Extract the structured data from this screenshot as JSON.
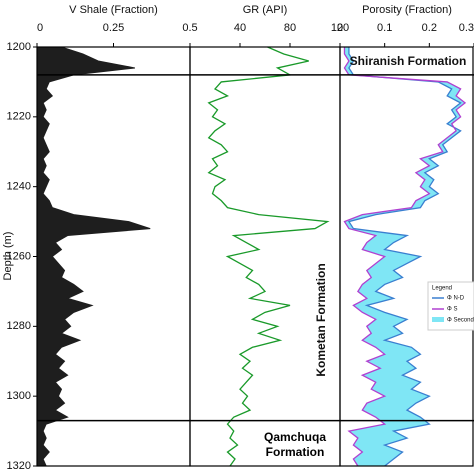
{
  "chart_data": {
    "type": "well-log",
    "y_label": "Depth (m)",
    "ylim": [
      1200,
      1320
    ],
    "yticks": [
      1200,
      1220,
      1240,
      1260,
      1280,
      1300,
      1320
    ],
    "depth": [
      1200,
      1202,
      1204,
      1206,
      1208,
      1210,
      1212,
      1214,
      1216,
      1218,
      1220,
      1222,
      1224,
      1226,
      1228,
      1230,
      1232,
      1234,
      1236,
      1238,
      1240,
      1242,
      1244,
      1246,
      1248,
      1250,
      1252,
      1254,
      1256,
      1258,
      1260,
      1262,
      1264,
      1266,
      1268,
      1270,
      1272,
      1274,
      1276,
      1278,
      1280,
      1282,
      1284,
      1286,
      1288,
      1290,
      1292,
      1294,
      1296,
      1298,
      1300,
      1302,
      1304,
      1306,
      1308,
      1310,
      1312,
      1314,
      1316,
      1318,
      1320
    ],
    "tracks": [
      {
        "title": "V Shale (Fraction)",
        "xlim": [
          0,
          0.5
        ],
        "xticks": [
          0,
          0.25,
          0.5
        ],
        "fill": true,
        "series": [
          {
            "color": "#1e1e1e",
            "values": [
              0.08,
              0.15,
              0.2,
              0.32,
              0.12,
              0.04,
              0.03,
              0.05,
              0.02,
              0.03,
              0.02,
              0.04,
              0.03,
              0.02,
              0.03,
              0.04,
              0.02,
              0.03,
              0.02,
              0.04,
              0.03,
              0.02,
              0.04,
              0.05,
              0.12,
              0.3,
              0.37,
              0.1,
              0.06,
              0.08,
              0.05,
              0.07,
              0.09,
              0.08,
              0.12,
              0.15,
              0.1,
              0.18,
              0.12,
              0.09,
              0.11,
              0.08,
              0.14,
              0.08,
              0.06,
              0.09,
              0.07,
              0.1,
              0.06,
              0.08,
              0.07,
              0.09,
              0.06,
              0.1,
              0.03,
              0.02,
              0.03,
              0.02,
              0.04,
              0.02,
              0.03
            ]
          }
        ]
      },
      {
        "title": "GR (API)",
        "xlim": [
          0,
          120
        ],
        "xticks": [
          40,
          80,
          120
        ],
        "fill": false,
        "series": [
          {
            "color": "#1a9a2a",
            "values": [
              62,
              75,
              95,
              70,
              80,
              25,
              20,
              30,
              15,
              22,
              18,
              28,
              20,
              15,
              25,
              30,
              18,
              22,
              15,
              28,
              20,
              18,
              25,
              30,
              55,
              110,
              100,
              35,
              45,
              55,
              30,
              40,
              50,
              45,
              55,
              60,
              48,
              80,
              60,
              50,
              70,
              55,
              72,
              50,
              40,
              48,
              42,
              50,
              45,
              40,
              46,
              42,
              48,
              35,
              30,
              35,
              32,
              38,
              30,
              36,
              32
            ]
          }
        ]
      },
      {
        "title": "Porosity (Fraction)",
        "xlim": [
          0,
          0.3
        ],
        "xticks": [
          0,
          0.1,
          0.2,
          0.3
        ],
        "fill": false,
        "series": [
          {
            "name": "Φ N-D",
            "color": "#3a7fd0",
            "values": [
              0.02,
              0.02,
              0.03,
              0.02,
              0.03,
              0.22,
              0.25,
              0.24,
              0.27,
              0.25,
              0.26,
              0.24,
              0.27,
              0.25,
              0.23,
              0.24,
              0.2,
              0.22,
              0.19,
              0.21,
              0.2,
              0.22,
              0.19,
              0.18,
              0.08,
              0.02,
              0.03,
              0.15,
              0.12,
              0.1,
              0.18,
              0.15,
              0.12,
              0.14,
              0.1,
              0.08,
              0.12,
              0.06,
              0.1,
              0.15,
              0.12,
              0.14,
              0.1,
              0.16,
              0.18,
              0.15,
              0.17,
              0.14,
              0.18,
              0.16,
              0.2,
              0.17,
              0.15,
              0.18,
              0.2,
              0.12,
              0.15,
              0.1,
              0.14,
              0.12,
              0.1
            ]
          },
          {
            "name": "Φ S",
            "color": "#b040d0",
            "values": [
              0.01,
              0.01,
              0.02,
              0.01,
              0.02,
              0.24,
              0.27,
              0.26,
              0.28,
              0.26,
              0.27,
              0.25,
              0.26,
              0.24,
              0.22,
              0.23,
              0.18,
              0.2,
              0.17,
              0.19,
              0.18,
              0.2,
              0.17,
              0.16,
              0.05,
              0.01,
              0.02,
              0.08,
              0.06,
              0.05,
              0.1,
              0.08,
              0.06,
              0.07,
              0.05,
              0.04,
              0.06,
              0.03,
              0.05,
              0.08,
              0.06,
              0.07,
              0.05,
              0.08,
              0.1,
              0.06,
              0.09,
              0.05,
              0.08,
              0.07,
              0.1,
              0.06,
              0.05,
              0.08,
              0.1,
              0.02,
              0.04,
              0.03,
              0.05,
              0.03,
              0.04
            ]
          }
        ],
        "secondary_fill": {
          "name": "Φ Secondary",
          "color": "#7fe6f5"
        }
      }
    ],
    "boundaries": [
      1208,
      1307
    ],
    "formations": [
      "Shiranish Formation",
      "Kometan Formation",
      "Qamchuqa Formation"
    ],
    "legend": {
      "title": "Legend"
    }
  }
}
